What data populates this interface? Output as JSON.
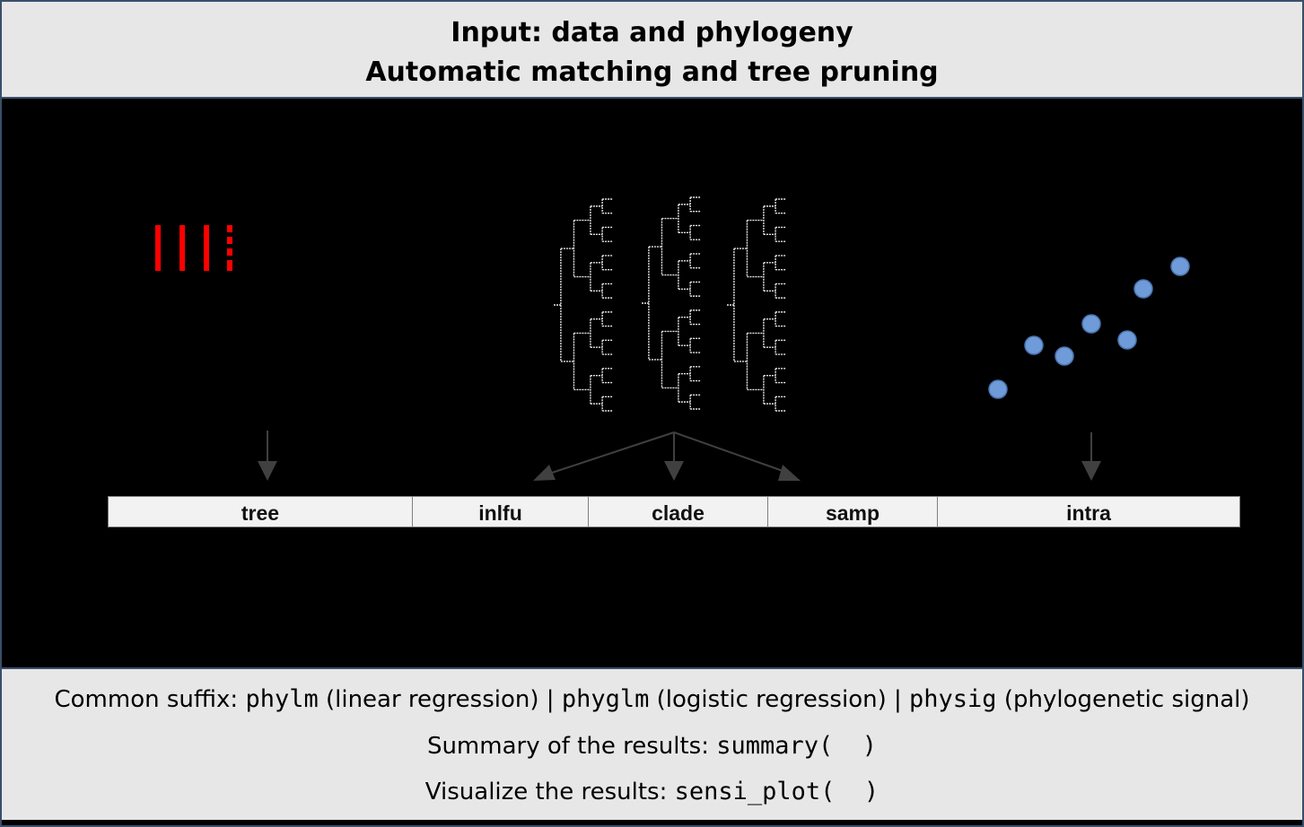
{
  "header": {
    "line1": "Input: data and phylogeny",
    "line2": "Automatic matching and tree pruning"
  },
  "modules": [
    {
      "label": "tree"
    },
    {
      "label": "inlfu"
    },
    {
      "label": "clade"
    },
    {
      "label": "samp"
    },
    {
      "label": "intra"
    }
  ],
  "footer": {
    "suffix_prefix": "Common suffix: ",
    "fn1": "phylm",
    "fn1_desc": " (linear regression) ",
    "sep": "|",
    "fn2": "phyglm",
    "fn2_desc": " (logistic regression) ",
    "fn3": "physig",
    "fn3_desc": " (phylogenetic signal)",
    "summary_label": "Summary of the results: ",
    "summary_fn": "summary(  )",
    "visualize_label": "Visualize the results: ",
    "visualize_fn": "sensi_plot(  )"
  },
  "colors": {
    "panel_bg": "#e7e7e7",
    "border": "#3b4e6b",
    "tree_marks": "#ff0000",
    "points": "#6f9bd8",
    "arrows": "#404040"
  },
  "icons": [
    "tally-marks-icon",
    "phylogenetic-trees-icon",
    "scatter-plot-icon"
  ]
}
